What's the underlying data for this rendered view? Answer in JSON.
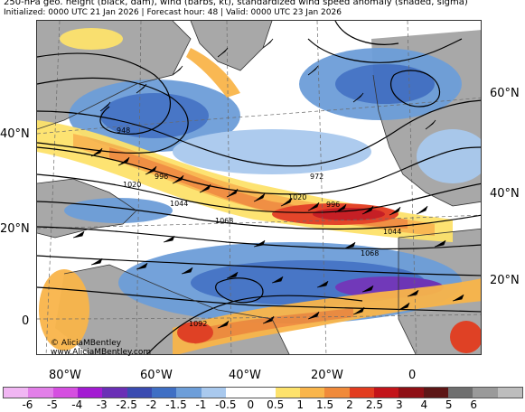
{
  "header": {
    "title": "250-hPa geo. height (black, dam), wind (barbs, kt), standardized wind speed anomaly (shaded, sigma)",
    "subtitle": "Initialized: 0000 UTC 21 Jan 2026 | Forecast hour: 48 | Valid: 0000 UTC 23 Jan 2026"
  },
  "map": {
    "lat_labels_left": [
      "40°N",
      "20°N",
      "0"
    ],
    "lat_labels_right": [
      "60°N",
      "40°N",
      "20°N"
    ],
    "lon_labels": [
      "80°W",
      "60°W",
      "40°W",
      "20°W",
      "0"
    ],
    "contour_labels": [
      "948",
      "996",
      "1020",
      "1044",
      "1068",
      "972",
      "996",
      "1020",
      "1044",
      "1068",
      "1092"
    ],
    "watermark_line1": "© AliciaMBentley",
    "watermark_line2": "www.AliciaMBentley.com"
  },
  "colorbar": {
    "ticks": [
      "-6",
      "-5",
      "-4",
      "-3",
      "-2.5",
      "-2",
      "-1.5",
      "-1",
      "-0.5",
      "0",
      "0.5",
      "1",
      "1.5",
      "2",
      "2.5",
      "3",
      "4",
      "5",
      "6"
    ],
    "colors": [
      "#f1b6f3",
      "#e27fe8",
      "#d54fe0",
      "#a31bd2",
      "#6a2fb6",
      "#3a4bb1",
      "#3f6fc4",
      "#6d9ed9",
      "#a9c9ee",
      "#ffffff",
      "#ffffff",
      "#fde26b",
      "#f9b54a",
      "#f08a3a",
      "#e23c1f",
      "#c3141a",
      "#8f0f15",
      "#5d1616",
      "#6f6f6f",
      "#9a9a9a",
      "#bdbdbd"
    ]
  }
}
